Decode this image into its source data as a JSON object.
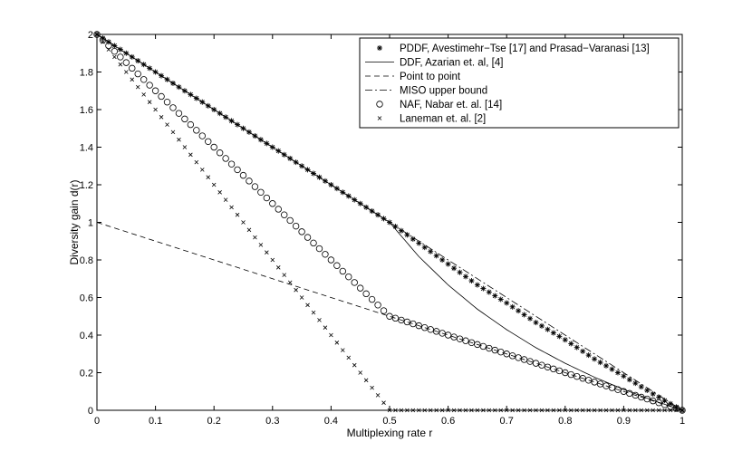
{
  "chart_data": {
    "type": "line",
    "title": "",
    "xlabel": "Multiplexing rate r",
    "ylabel": "Diversity gain d(r)",
    "xlim": [
      0,
      1
    ],
    "ylim": [
      0,
      2
    ],
    "xticks": [
      "0",
      "0.1",
      "0.2",
      "0.3",
      "0.4",
      "0.5",
      "0.6",
      "0.7",
      "0.8",
      "0.9",
      "1"
    ],
    "yticks": [
      "0",
      "0.2",
      "0.4",
      "0.6",
      "0.8",
      "1",
      "1.2",
      "1.4",
      "1.6",
      "1.8",
      "2"
    ],
    "grid": false,
    "legend_position": "top-right",
    "series": [
      {
        "name": "PDDF, Avestimehr−Tse [17] and Prasad−Varanasi [13]",
        "style": "asterisk-markers",
        "x": [
          0,
          0.1,
          0.2,
          0.3,
          0.4,
          0.5,
          0.55,
          0.6,
          0.65,
          0.7,
          0.75,
          0.8,
          0.85,
          0.9,
          0.95,
          1
        ],
        "y": [
          2,
          1.8,
          1.6,
          1.4,
          1.2,
          1.0,
          0.889,
          0.778,
          0.667,
          0.571,
          0.467,
          0.375,
          0.273,
          0.182,
          0.087,
          0
        ]
      },
      {
        "name": "DDF, Azarian et. al, [4]",
        "style": "solid-line",
        "x": [
          0,
          0.5,
          0.55,
          0.6,
          0.65,
          0.7,
          0.75,
          0.8,
          0.85,
          0.9,
          0.95,
          1
        ],
        "y": [
          2,
          1.0,
          0.818,
          0.667,
          0.538,
          0.429,
          0.333,
          0.25,
          0.176,
          0.111,
          0.053,
          0
        ]
      },
      {
        "name": "Point to point",
        "style": "dashed-line",
        "x": [
          0,
          1
        ],
        "y": [
          1,
          0
        ]
      },
      {
        "name": "MISO upper bound",
        "style": "dash-dot-line",
        "x": [
          0,
          1
        ],
        "y": [
          2,
          0
        ]
      },
      {
        "name": "NAF, Nabar et. al. [14]",
        "style": "circle-markers",
        "x": [
          0,
          0.05,
          0.1,
          0.15,
          0.2,
          0.25,
          0.3,
          0.35,
          0.4,
          0.45,
          0.5,
          0.55,
          0.6,
          0.65,
          0.7,
          0.75,
          0.8,
          0.85,
          0.9,
          0.95,
          1
        ],
        "y": [
          2,
          1.85,
          1.7,
          1.55,
          1.4,
          1.25,
          1.1,
          0.95,
          0.8,
          0.65,
          0.5,
          0.45,
          0.4,
          0.35,
          0.3,
          0.25,
          0.2,
          0.15,
          0.1,
          0.05,
          0
        ]
      },
      {
        "name": "Laneman et. al. [2]",
        "style": "x-markers",
        "x": [
          0,
          0.05,
          0.1,
          0.15,
          0.2,
          0.25,
          0.3,
          0.35,
          0.4,
          0.45,
          0.5,
          0.6,
          0.7,
          0.8,
          0.9,
          1
        ],
        "y": [
          2,
          1.8,
          1.6,
          1.4,
          1.2,
          1.0,
          0.8,
          0.6,
          0.4,
          0.2,
          0,
          0,
          0,
          0,
          0,
          0
        ]
      }
    ]
  }
}
